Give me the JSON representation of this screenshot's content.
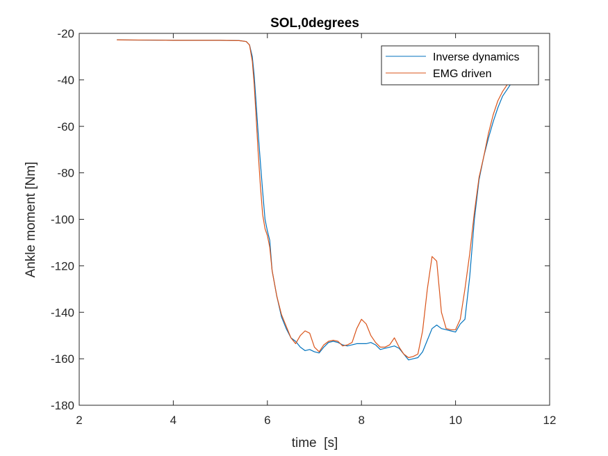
{
  "chart_data": {
    "type": "line",
    "title": "SOL,0degrees",
    "xlabel": "time  [s]",
    "ylabel": "Ankle moment [Nm]",
    "xlim": [
      2,
      12
    ],
    "ylim": [
      -180,
      -20
    ],
    "xticks": [
      2,
      4,
      6,
      8,
      10,
      12
    ],
    "yticks": [
      -20,
      -40,
      -60,
      -80,
      -100,
      -120,
      -140,
      -160,
      -180
    ],
    "grid": false,
    "legend_position": "top-right",
    "series": [
      {
        "name": "Inverse dynamics",
        "color": "#0072BD",
        "x": [
          2.8,
          3.5,
          4.0,
          4.5,
          5.0,
          5.4,
          5.55,
          5.62,
          5.68,
          5.72,
          5.76,
          5.8,
          5.85,
          5.9,
          5.95,
          6.0,
          6.05,
          6.1,
          6.2,
          6.3,
          6.4,
          6.5,
          6.6,
          6.7,
          6.8,
          6.9,
          7.0,
          7.1,
          7.2,
          7.3,
          7.4,
          7.5,
          7.6,
          7.7,
          7.8,
          7.9,
          8.0,
          8.1,
          8.2,
          8.3,
          8.4,
          8.5,
          8.6,
          8.7,
          8.8,
          8.9,
          9.0,
          9.1,
          9.2,
          9.3,
          9.4,
          9.5,
          9.6,
          9.7,
          9.8,
          9.9,
          10.0,
          10.1,
          10.2,
          10.3,
          10.4,
          10.5,
          10.6,
          10.7,
          10.8,
          10.9,
          11.0,
          11.1,
          11.2
        ],
        "y": [
          -22.8,
          -22.9,
          -23.0,
          -23.0,
          -23.0,
          -23.1,
          -23.5,
          -25.0,
          -30.0,
          -38.0,
          -50.0,
          -62.0,
          -75.0,
          -88.0,
          -100.0,
          -105.0,
          -109.0,
          -122.0,
          -133.0,
          -142.0,
          -147.0,
          -151.0,
          -152.5,
          -155.0,
          -156.5,
          -156.0,
          -157.0,
          -157.5,
          -155.0,
          -153.0,
          -152.5,
          -153.0,
          -154.0,
          -154.5,
          -154.0,
          -153.5,
          -153.5,
          -153.5,
          -153.0,
          -154.0,
          -156.0,
          -155.5,
          -155.0,
          -154.5,
          -155.5,
          -158.0,
          -160.5,
          -160.0,
          -159.5,
          -157.0,
          -152.0,
          -147.0,
          -145.5,
          -147.0,
          -147.5,
          -148.0,
          -148.5,
          -145.0,
          -143.0,
          -125.0,
          -100.0,
          -83.0,
          -73.0,
          -65.0,
          -58.0,
          -52.0,
          -47.0,
          -44.0,
          -41.0
        ]
      },
      {
        "name": "EMG driven",
        "color": "#D95319",
        "x": [
          2.8,
          3.5,
          4.0,
          4.5,
          5.0,
          5.4,
          5.55,
          5.62,
          5.68,
          5.72,
          5.76,
          5.8,
          5.85,
          5.9,
          5.95,
          6.0,
          6.05,
          6.1,
          6.2,
          6.3,
          6.4,
          6.5,
          6.6,
          6.7,
          6.8,
          6.9,
          7.0,
          7.1,
          7.2,
          7.3,
          7.4,
          7.5,
          7.6,
          7.7,
          7.8,
          7.9,
          8.0,
          8.1,
          8.2,
          8.3,
          8.4,
          8.5,
          8.6,
          8.7,
          8.8,
          8.9,
          9.0,
          9.1,
          9.2,
          9.3,
          9.4,
          9.5,
          9.6,
          9.7,
          9.8,
          9.9,
          10.0,
          10.1,
          10.2,
          10.3,
          10.4,
          10.5,
          10.6,
          10.7,
          10.8,
          10.9,
          11.0,
          11.1,
          11.2
        ],
        "y": [
          -22.8,
          -22.9,
          -23.0,
          -23.0,
          -23.0,
          -23.1,
          -23.5,
          -25.0,
          -32.0,
          -42.0,
          -56.0,
          -70.0,
          -85.0,
          -98.0,
          -104.0,
          -107.0,
          -112.0,
          -122.0,
          -133.0,
          -141.0,
          -146.0,
          -151.0,
          -153.5,
          -150.0,
          -148.0,
          -149.0,
          -155.0,
          -157.0,
          -154.0,
          -152.5,
          -152.0,
          -152.5,
          -154.5,
          -154.0,
          -153.0,
          -147.0,
          -143.0,
          -145.0,
          -150.0,
          -153.0,
          -155.0,
          -155.0,
          -154.0,
          -151.0,
          -155.0,
          -158.0,
          -159.5,
          -159.0,
          -158.0,
          -148.0,
          -130.0,
          -116.0,
          -118.0,
          -140.0,
          -147.0,
          -147.5,
          -147.5,
          -143.0,
          -130.0,
          -115.0,
          -97.0,
          -82.0,
          -73.0,
          -63.0,
          -55.0,
          -49.0,
          -45.0,
          -42.0,
          -40.0
        ]
      }
    ]
  }
}
